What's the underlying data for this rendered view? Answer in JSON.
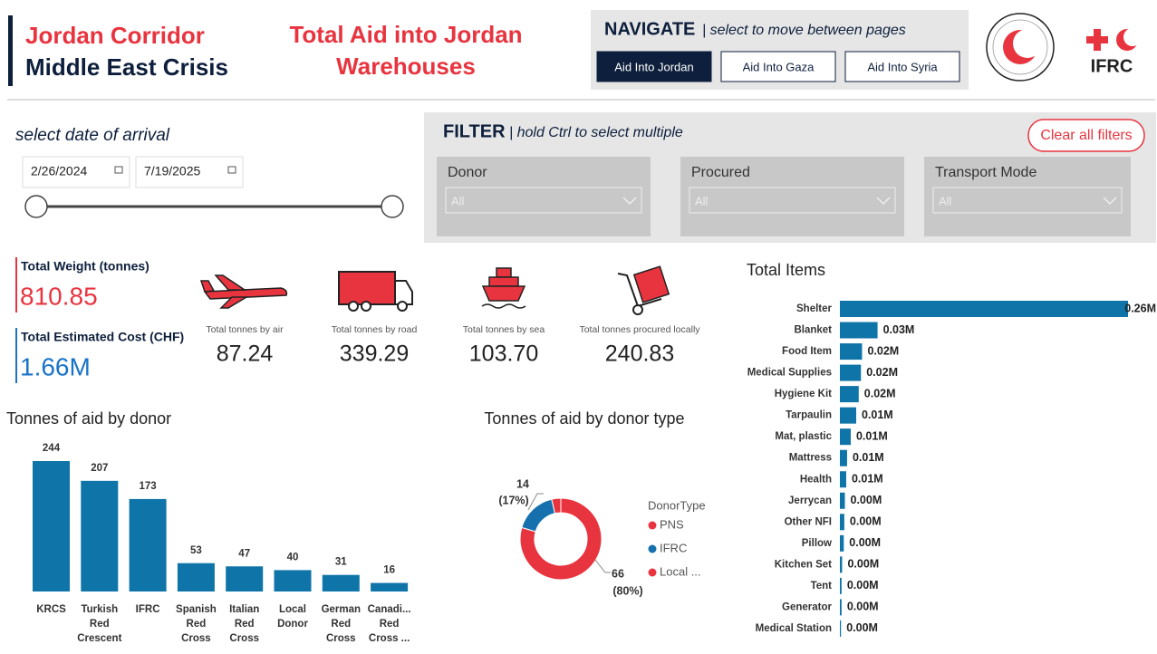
{
  "header": {
    "org_line1": "Jordan Corridor",
    "org_line2": "Middle East Crisis",
    "title_lines": [
      "Total Aid into Jordan",
      "Warehouses"
    ]
  },
  "navigate": {
    "title": "NAVIGATE",
    "hint": "| select to move between pages",
    "buttons": [
      "Aid Into Jordan",
      "Aid Into Gaza",
      "Aid Into Syria"
    ],
    "active": 0
  },
  "logos": {
    "ifrc": "IFRC"
  },
  "date_filter": {
    "label": "select date of arrival",
    "start": "2/26/2024",
    "end": "7/19/2025"
  },
  "filter": {
    "title": "FILTER",
    "hint": "| hold Ctrl to select multiple",
    "clear": "Clear all filters",
    "dropdowns": [
      {
        "label": "Donor",
        "value": "All"
      },
      {
        "label": "Procured",
        "value": "All"
      },
      {
        "label": "Transport Mode",
        "value": "All"
      }
    ]
  },
  "kpis": [
    {
      "label": "Total Weight (tonnes)",
      "value": "810.85",
      "color": "#e8343f"
    },
    {
      "label": "Total Estimated Cost (CHF)",
      "value": "1.66M",
      "color": "#1a73c8"
    }
  ],
  "transport": [
    {
      "label": "Total tonnes by air",
      "value": "87.24"
    },
    {
      "label": "Total tonnes by road",
      "value": "339.29"
    },
    {
      "label": "Total tonnes by sea",
      "value": "103.70"
    },
    {
      "label": "Total tonnes procured locally",
      "value": "240.83"
    }
  ],
  "chart_data": [
    {
      "type": "bar",
      "title": "Tonnes of aid by donor",
      "color": "#0f74a8",
      "categories": [
        "KRCS",
        "Turkish Red Crescent",
        "IFRC",
        "Spanish Red Cross",
        "Italian Red Cross",
        "Local Donor",
        "German Red Cross",
        "Canadi... Red Cross ..."
      ],
      "values": [
        244,
        207,
        173,
        53,
        47,
        40,
        31,
        16
      ]
    },
    {
      "type": "donut",
      "title": "Tonnes of aid by donor type",
      "legend_title": "DonorType",
      "categories": [
        "PNS",
        "IFRC",
        "Local ..."
      ],
      "values": [
        66,
        14,
        3
      ],
      "value_labels": [
        "66",
        "14",
        null
      ],
      "percent_labels": [
        "(80%)",
        "(17%)",
        null
      ],
      "colors": [
        "#e8343f",
        "#1570ad",
        "#e8343f"
      ]
    },
    {
      "type": "barh",
      "title": "Total Items",
      "color": "#0f74a8",
      "categories": [
        "Shelter",
        "Blanket",
        "Food Item",
        "Medical Supplies",
        "Hygiene Kit",
        "Tarpaulin",
        "Mat, plastic",
        "Mattress",
        "Health",
        "Jerrycan",
        "Other NFI",
        "Pillow",
        "Kitchen Set",
        "Tent",
        "Generator",
        "Medical Station"
      ],
      "values": [
        0.26,
        0.034,
        0.02,
        0.019,
        0.017,
        0.0147,
        0.0098,
        0.0065,
        0.0057,
        0.0045,
        0.004,
        0.0035,
        0.002,
        0.0015,
        0.0015,
        0.001
      ],
      "value_labels": [
        "0.26M",
        "0.03M",
        "0.02M",
        "0.02M",
        "0.02M",
        "0.01M",
        "0.01M",
        "0.01M",
        "0.01M",
        "0.00M",
        "0.00M",
        "0.00M",
        "0.00M",
        "0.00M",
        "0.00M",
        "0.00M"
      ]
    }
  ]
}
